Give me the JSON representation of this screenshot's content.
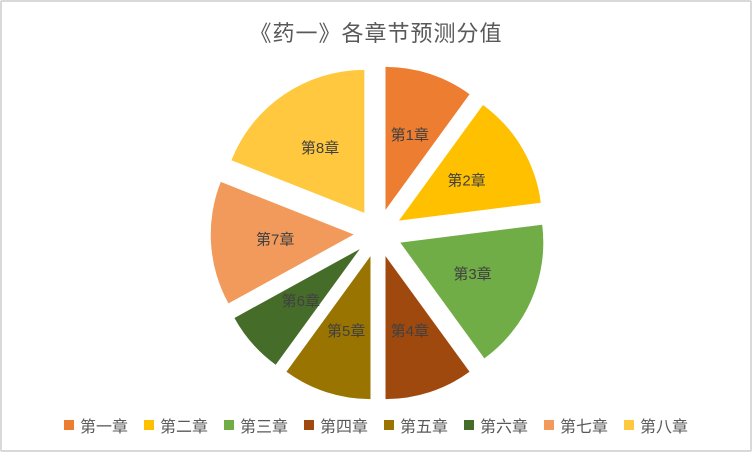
{
  "chart_data": {
    "type": "pie",
    "title": "《药一》各章节预测分值",
    "categories": [
      "第一章",
      "第二章",
      "第三章",
      "第四章",
      "第五章",
      "第六章",
      "第七章",
      "第八章"
    ],
    "slice_labels": [
      "第1章",
      "第2章",
      "第3章",
      "第4章",
      "第5章",
      "第6章",
      "第7章",
      "第8章"
    ],
    "values": [
      10,
      13,
      17,
      10,
      10,
      7,
      14,
      19
    ],
    "colors": [
      "#ED7D31",
      "#FFC000",
      "#70AD47",
      "#A0490E",
      "#997400",
      "#466C2A",
      "#F19A5B",
      "#FFC83E"
    ],
    "start_angle_deg": 0,
    "direction": "clockwise",
    "explosion": 0.17,
    "legend_position": "bottom",
    "grid": false
  },
  "styles": {
    "title_color": "#595959",
    "slice_label_color": "#404040",
    "legend_text_color": "#595959",
    "frame_border_color": "#D9D9D9",
    "background": "#FFFFFF"
  }
}
